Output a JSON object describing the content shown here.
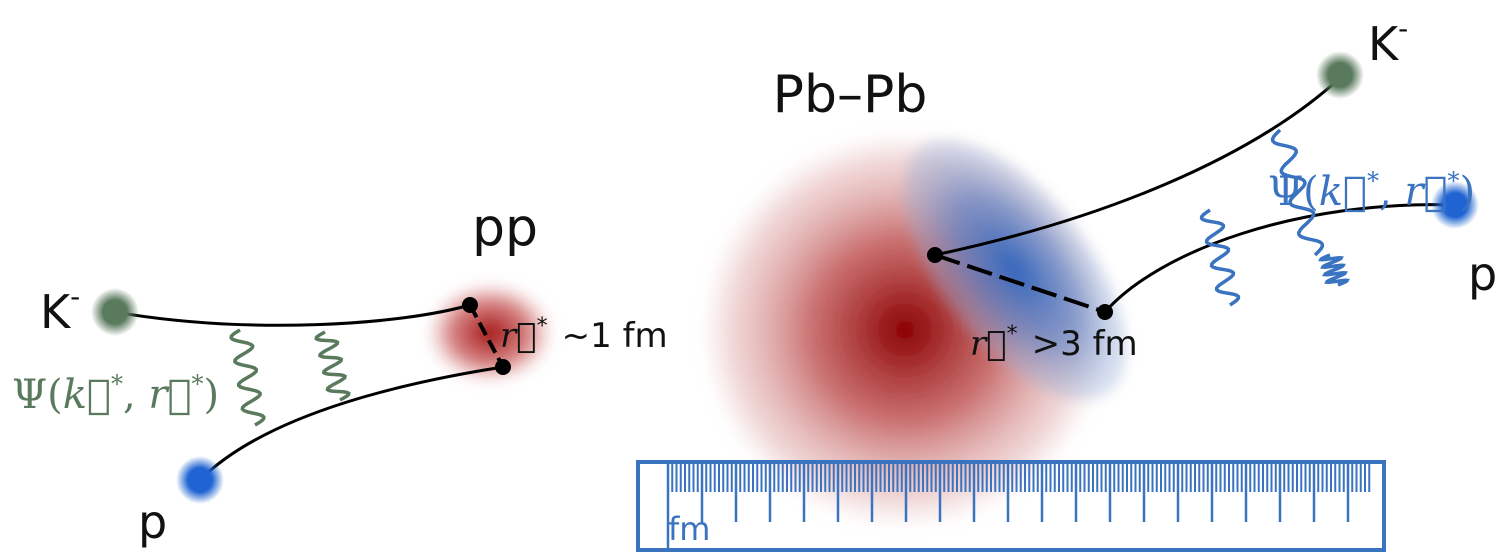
{
  "pp_system": {
    "label": "pp",
    "kaon": {
      "base": "K",
      "sup": "-"
    },
    "proton": "p",
    "wavefunction": [
      "Ψ(",
      "k⃗",
      "*",
      ", ",
      "r⃗",
      "*",
      ")"
    ],
    "separation": {
      "vec": "r⃗",
      "sup": "*",
      "text": "~1 fm"
    }
  },
  "pbpb_system": {
    "label": "Pb–Pb",
    "kaon": {
      "base": "K",
      "sup": "-"
    },
    "proton": "p",
    "wavefunction": [
      "Ψ(",
      "k⃗",
      "*",
      ", ",
      "r⃗",
      "*",
      ")"
    ],
    "separation": {
      "vec": "r⃗",
      "sup": "*",
      "text": ">3 fm"
    }
  },
  "ruler": {
    "unit": "fm"
  }
}
